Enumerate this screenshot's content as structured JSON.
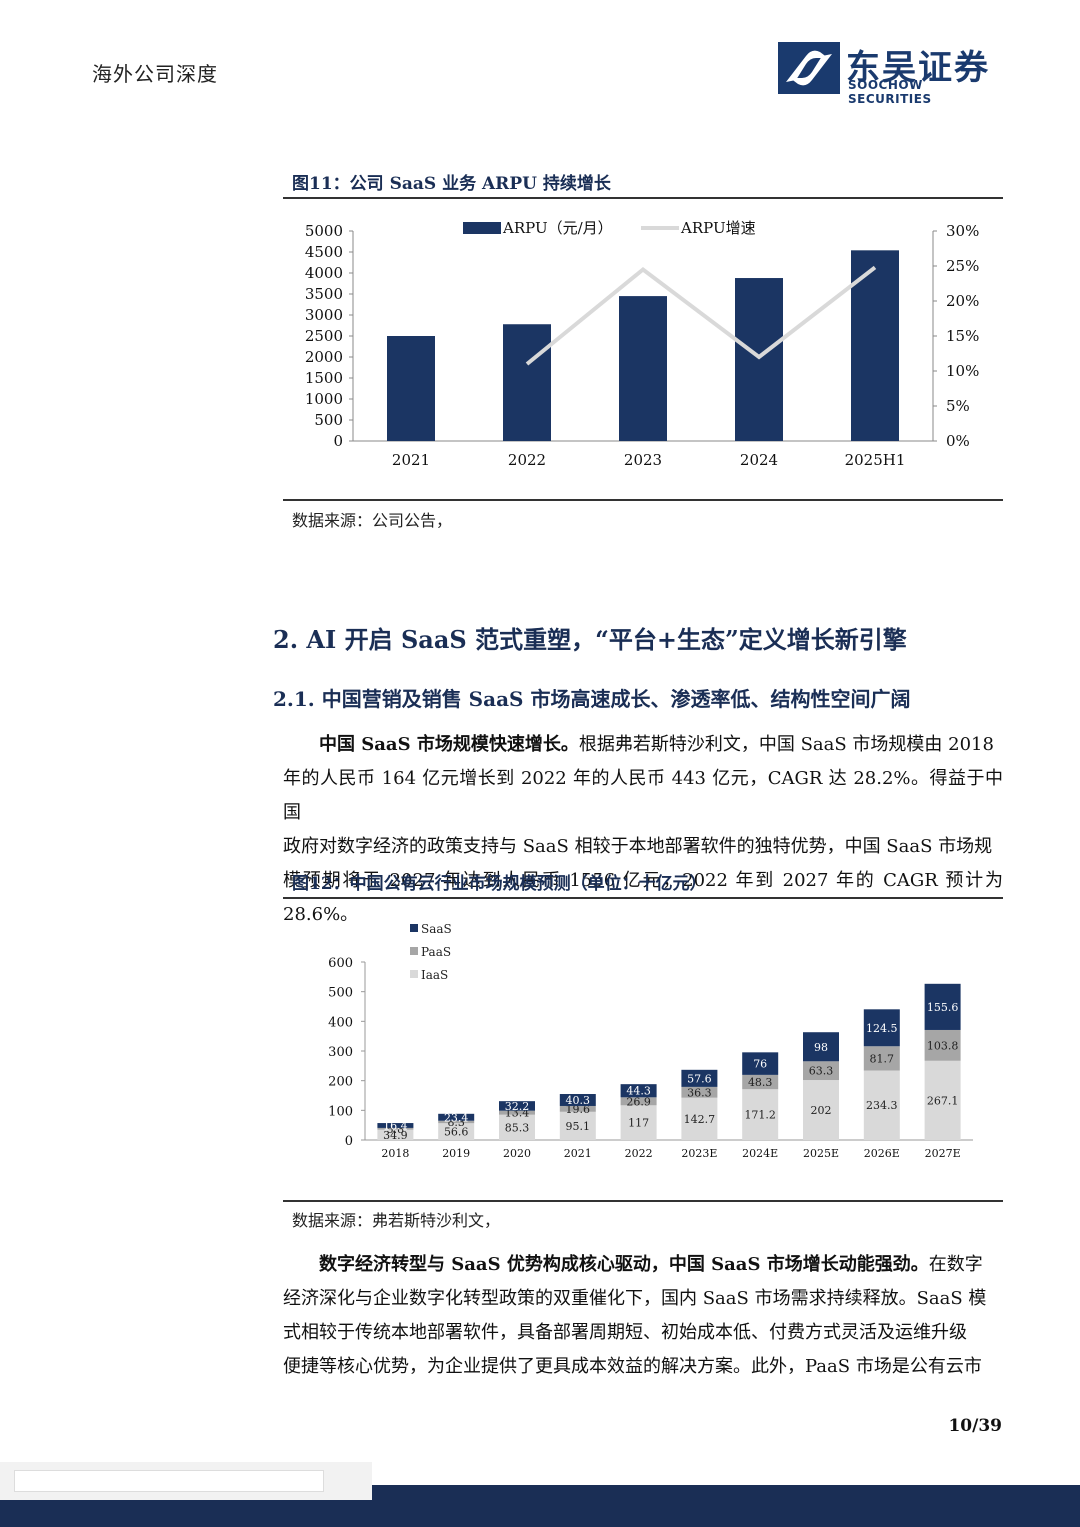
{
  "header": {
    "left_title": "海外公司深度",
    "logo_cn": "东吴证券",
    "logo_en": "SOOCHOW SECURITIES"
  },
  "figure11": {
    "title": "图11：公司 SaaS 业务 ARPU 持续增长",
    "source": "数据来源：公司公告，"
  },
  "section2": {
    "heading": "2.  AI 开启 SaaS 范式重塑，“平台+生态”定义增长新引擎",
    "sub_heading": "2.1.  中国营销及销售 SaaS 市场高速成长、渗透率低、结构性空间广阔",
    "para1_bold": "中国 SaaS 市场规模快速增长。",
    "para1_line1_rest": "根据弗若斯特沙利文，中国 SaaS 市场规模由 2018",
    "para1_line2": "年的人民币 164 亿元增长到 2022 年的人民币 443 亿元，CAGR 达 28.2%。得益于中国",
    "para1_line3": "政府对数字经济的政策支持与 SaaS 相较于本地部署软件的独特优势，中国 SaaS 市场规",
    "para1_line4": "模预期将于 2027 年达到人民币 1556 亿元，2022 年到 2027 年的 CAGR 预计为 28.6%。",
    "para2_bold": "数字经济转型与 SaaS 优势构成核心驱动，中国 SaaS 市场增长动能强劲。",
    "para2_line1_rest": "在数字",
    "para2_line2": "经济深化与企业数字化转型政策的双重催化下，国内 SaaS 市场需求持续释放。SaaS 模",
    "para2_line3": "式相较于传统本地部署软件，具备部署周期短、初始成本低、付费方式灵活及运维升级",
    "para2_line4": "便捷等核心优势，为企业提供了更具成本效益的解决方案。此外，PaaS 市场是公有云市"
  },
  "figure12": {
    "title": "图12：中国公有云行业市场规模预测（单位：十亿元）",
    "source": "数据来源：弗若斯特沙利文，"
  },
  "page_number": "10/39",
  "colors": {
    "navy": "#1a3a6e",
    "bar_navy": "#1b3563",
    "line_gray": "#d9d9d9",
    "paas_gray": "#a6a6a6",
    "iaas_light": "#d9d9d9"
  },
  "chart_data": [
    {
      "type": "bar",
      "title": "",
      "categories": [
        "2021",
        "2022",
        "2023",
        "2024",
        "2025H1"
      ],
      "series": [
        {
          "name": "ARPU（元/月）",
          "type": "bar",
          "axis": "left",
          "values": [
            2500,
            2780,
            3450,
            3880,
            4540
          ]
        },
        {
          "name": "ARPU增速",
          "type": "line",
          "axis": "right",
          "values": [
            null,
            0.11,
            0.245,
            0.12,
            0.248
          ]
        }
      ],
      "y_left_ticks": [
        "5000",
        "4500",
        "4000",
        "3500",
        "3000",
        "2500",
        "2000",
        "1500",
        "1000",
        "500",
        "0"
      ],
      "y_right_ticks": [
        "30%",
        "25%",
        "20%",
        "15%",
        "10%",
        "5%",
        "0%"
      ],
      "ylim_left": [
        0,
        5000
      ],
      "ylim_right": [
        0,
        0.3
      ],
      "legend_position": "top",
      "grid": false
    },
    {
      "type": "bar",
      "stacked": true,
      "title": "",
      "categories": [
        "2018",
        "2019",
        "2020",
        "2021",
        "2022",
        "2023E",
        "2024E",
        "2025E",
        "2026E",
        "2027E"
      ],
      "series": [
        {
          "name": "IaaS",
          "values": [
            34.9,
            56.6,
            85.3,
            95.1,
            117,
            142.7,
            171.2,
            202,
            234.3,
            267.1
          ]
        },
        {
          "name": "PaaS",
          "values": [
            5.8,
            8.3,
            13.4,
            19.6,
            26.9,
            36.3,
            48.3,
            63.3,
            81.7,
            103.8
          ]
        },
        {
          "name": "SaaS",
          "values": [
            16.4,
            23.4,
            32.2,
            40.3,
            44.3,
            57.6,
            76,
            98,
            124.5,
            155.6
          ]
        }
      ],
      "labels": {
        "IaaS": [
          "34.9",
          "56.6",
          "85.3",
          "95.1",
          "117",
          "142.7",
          "171.2",
          "202",
          "234.3",
          "267.1"
        ],
        "PaaS": [
          "5.8",
          "8.3",
          "13.4",
          "19.6",
          "26.9",
          "36.3",
          "48.3",
          "63.3",
          "81.7",
          "103.8"
        ],
        "SaaS": [
          "16.4",
          "23.4",
          "32.2",
          "40.3",
          "44.3",
          "57.6",
          "76",
          "98",
          "124.5",
          "155.6"
        ]
      },
      "y_ticks": [
        "600",
        "500",
        "400",
        "300",
        "200",
        "100",
        "0"
      ],
      "ylim": [
        0,
        600
      ],
      "legend_position": "top-left",
      "grid": false
    }
  ]
}
